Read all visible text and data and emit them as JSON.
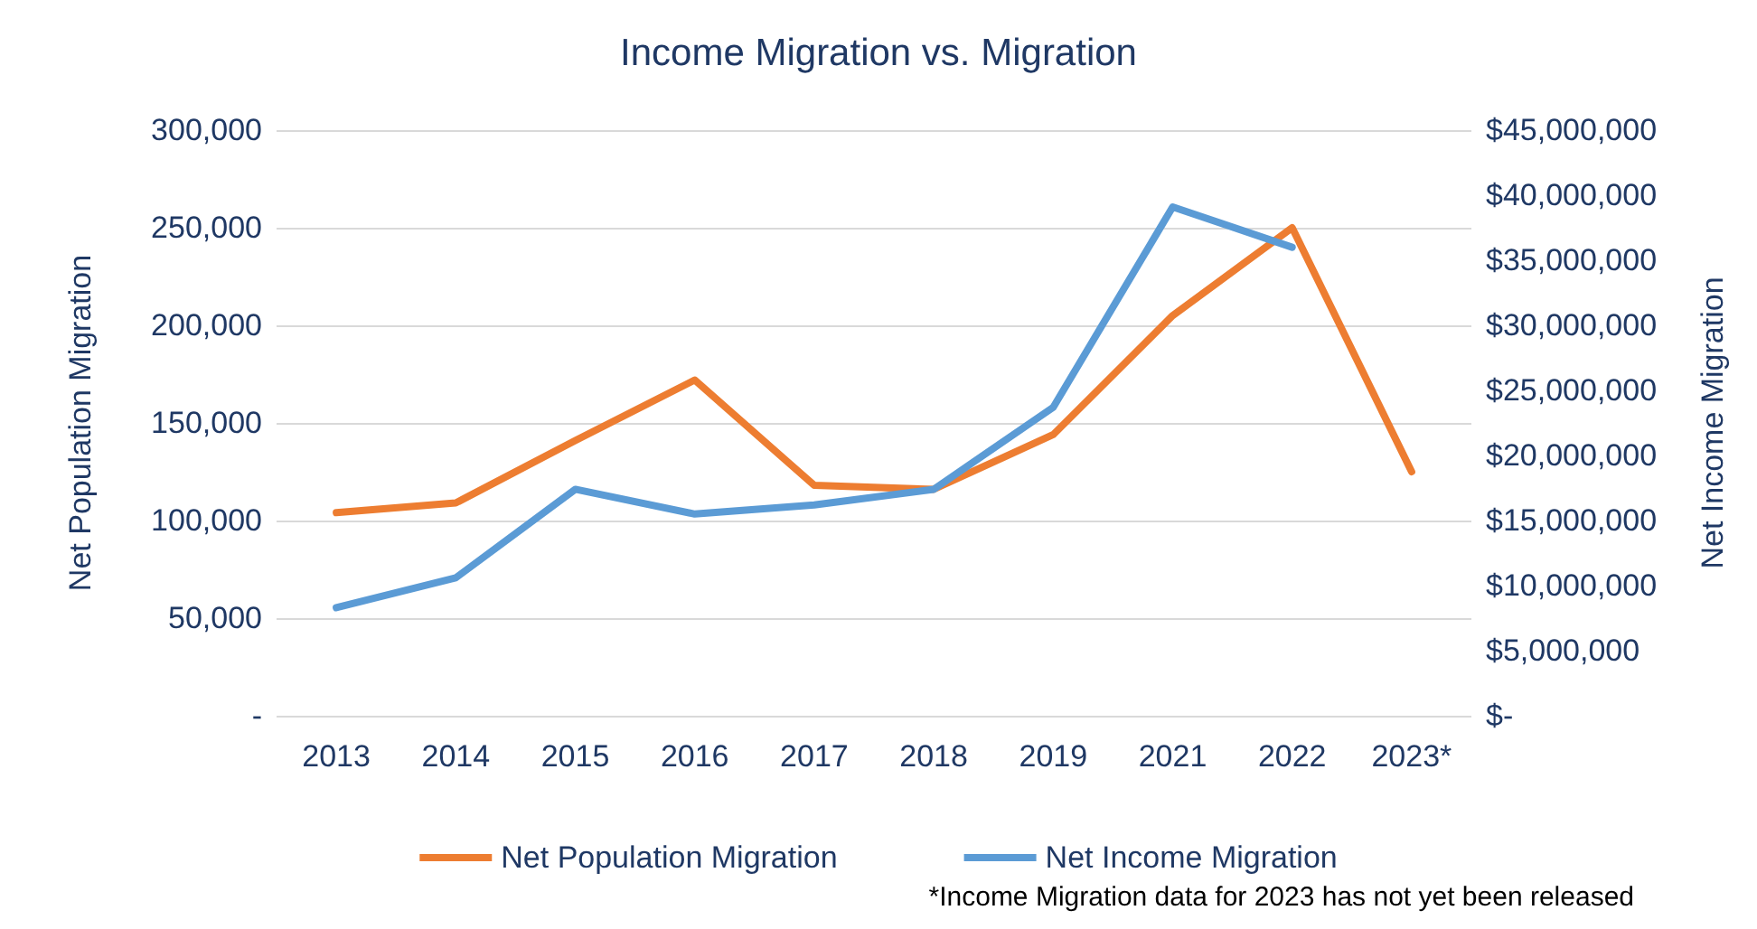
{
  "chart_data": {
    "type": "line",
    "title": "Income Migration vs. Migration",
    "ylabel": "Net Population Migration",
    "y2label": "Net Income Migration",
    "categories": [
      "2013",
      "2014",
      "2015",
      "2016",
      "2017",
      "2018",
      "2019",
      "2021",
      "2022",
      "2023*"
    ],
    "series": [
      {
        "name": "Net Population Migration",
        "color": "#ed7d31",
        "values": [
          104000,
          109000,
          141000,
          172000,
          118000,
          116000,
          144000,
          205000,
          250000,
          125000
        ]
      },
      {
        "name": "Net Income Migration",
        "color": "#5b9bd5",
        "axis": "y2",
        "values": [
          8300000,
          10600000,
          17400000,
          15500000,
          16200000,
          17400000,
          23700000,
          39100000,
          36000000,
          null
        ]
      }
    ],
    "ylim": [
      0,
      300000
    ],
    "yticks": [
      {
        "value": 0,
        "label": "-"
      },
      {
        "value": 50000,
        "label": "50,000"
      },
      {
        "value": 100000,
        "label": "100,000"
      },
      {
        "value": 150000,
        "label": "150,000"
      },
      {
        "value": 200000,
        "label": "200,000"
      },
      {
        "value": 250000,
        "label": "250,000"
      },
      {
        "value": 300000,
        "label": "300,000"
      }
    ],
    "y2lim": [
      0,
      45000000
    ],
    "y2ticks": [
      {
        "value": 0,
        "label": "$-"
      },
      {
        "value": 5000000,
        "label": "$5,000,000"
      },
      {
        "value": 10000000,
        "label": "$10,000,000"
      },
      {
        "value": 15000000,
        "label": "$15,000,000"
      },
      {
        "value": 20000000,
        "label": "$20,000,000"
      },
      {
        "value": 25000000,
        "label": "$25,000,000"
      },
      {
        "value": 30000000,
        "label": "$30,000,000"
      },
      {
        "value": 35000000,
        "label": "$35,000,000"
      },
      {
        "value": 40000000,
        "label": "$40,000,000"
      },
      {
        "value": 45000000,
        "label": "$45,000,000"
      }
    ],
    "grid": "y",
    "legend": "bottom",
    "marker": "none",
    "line_style": "solid",
    "annotations": [
      "*Income Migration data for 2023 has not yet been released"
    ]
  }
}
